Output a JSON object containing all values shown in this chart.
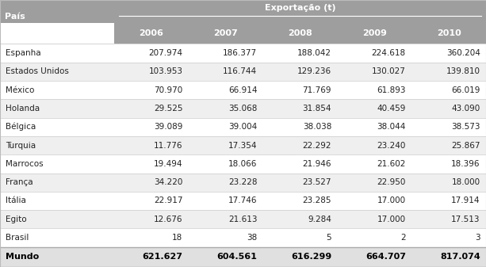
{
  "header_group": "Exportação (t)",
  "col_header": "País",
  "years": [
    "2006",
    "2007",
    "2008",
    "2009",
    "2010"
  ],
  "rows": [
    [
      "Espanha",
      "207.974",
      "186.377",
      "188.042",
      "224.618",
      "360.204"
    ],
    [
      "Estados Unidos",
      "103.953",
      "116.744",
      "129.236",
      "130.027",
      "139.810"
    ],
    [
      "México",
      "70.970",
      "66.914",
      "71.769",
      "61.893",
      "66.019"
    ],
    [
      "Holanda",
      "29.525",
      "35.068",
      "31.854",
      "40.459",
      "43.090"
    ],
    [
      "Bélgica",
      "39.089",
      "39.004",
      "38.038",
      "38.044",
      "38.573"
    ],
    [
      "Turquia",
      "11.776",
      "17.354",
      "22.292",
      "23.240",
      "25.867"
    ],
    [
      "Marrocos",
      "19.494",
      "18.066",
      "21.946",
      "21.602",
      "18.396"
    ],
    [
      "França",
      "34.220",
      "23.228",
      "23.527",
      "22.950",
      "18.000"
    ],
    [
      "Itália",
      "22.917",
      "17.746",
      "23.285",
      "17.000",
      "17.914"
    ],
    [
      "Egito",
      "12.676",
      "21.613",
      "9.284",
      "17.000",
      "17.513"
    ],
    [
      "Brasil",
      "18",
      "38",
      "5",
      "2",
      "3"
    ]
  ],
  "footer": [
    "Mundo",
    "621.627",
    "604.561",
    "616.299",
    "664.707",
    "817.074"
  ],
  "header_bg": "#9e9e9e",
  "header_text": "#ffffff",
  "row_bg_even": "#efefef",
  "row_bg_odd": "#ffffff",
  "footer_bg": "#e0e0e0",
  "footer_text": "#000000",
  "divider_color": "#cccccc",
  "text_color": "#222222",
  "bg_color": "#ffffff",
  "outer_border_color": "#bbbbbb"
}
